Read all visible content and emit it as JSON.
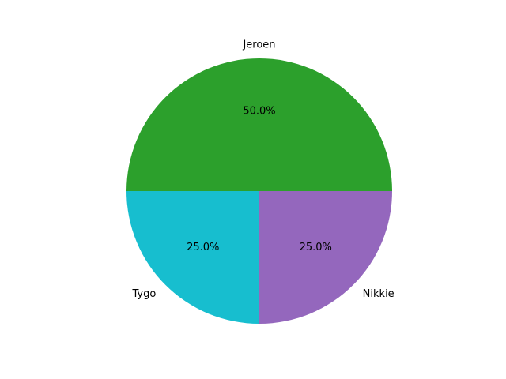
{
  "chart_data": {
    "type": "pie",
    "slices": [
      {
        "label": "Jeroen",
        "value": 50.0,
        "pct_label": "50.0%",
        "color": "#2ca02c"
      },
      {
        "label": "Tygo",
        "value": 25.0,
        "pct_label": "25.0%",
        "color": "#17becf"
      },
      {
        "label": "Nikkie",
        "value": 25.0,
        "pct_label": "25.0%",
        "color": "#9467bd"
      }
    ],
    "start_angle_deg": 0,
    "direction": "counterclockwise",
    "title": "",
    "legend": "none"
  }
}
